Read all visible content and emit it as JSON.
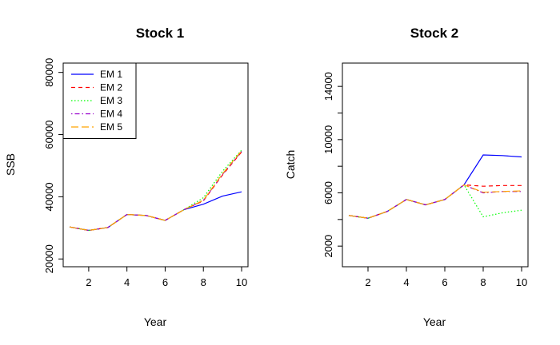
{
  "chart_data": [
    {
      "type": "line",
      "title": "Stock 1",
      "xlabel": "Year",
      "ylabel": "SSB",
      "xlim": [
        1,
        10
      ],
      "ylim": [
        17500,
        83000
      ],
      "xticks": [
        2,
        4,
        6,
        8,
        10
      ],
      "yticks": [
        20000,
        40000,
        60000,
        80000
      ],
      "legend": "top-left",
      "x": [
        1,
        2,
        3,
        4,
        5,
        6,
        7,
        8,
        9,
        10
      ],
      "series": [
        {
          "name": "EM 1",
          "color": "#0000ff",
          "dash": "solid",
          "values": [
            30300,
            29200,
            30100,
            34300,
            34000,
            32400,
            35900,
            37600,
            40200,
            41600
          ]
        },
        {
          "name": "EM 2",
          "color": "#ff0000",
          "dash": "dashed",
          "values": [
            30300,
            29200,
            30100,
            34300,
            34000,
            32400,
            35900,
            38700,
            47000,
            54400
          ]
        },
        {
          "name": "EM 3",
          "color": "#00ff00",
          "dash": "dotted",
          "values": [
            30300,
            29200,
            30100,
            34300,
            34000,
            32400,
            35900,
            39700,
            48200,
            55000
          ]
        },
        {
          "name": "EM 4",
          "color": "#9900cc",
          "dash": "dotdash",
          "values": [
            30300,
            29200,
            30100,
            34300,
            34000,
            32400,
            35900,
            38800,
            47200,
            54600
          ]
        },
        {
          "name": "EM 5",
          "color": "#ffa500",
          "dash": "longdash",
          "values": [
            30300,
            29200,
            30100,
            34300,
            34000,
            32400,
            35900,
            38900,
            47400,
            54800
          ]
        }
      ]
    },
    {
      "type": "line",
      "title": "Stock 2",
      "xlabel": "Year",
      "ylabel": "Catch",
      "xlim": [
        1,
        10
      ],
      "ylim": [
        450,
        15750
      ],
      "xticks": [
        2,
        4,
        6,
        8,
        10
      ],
      "yticks": [
        2000,
        6000,
        10000,
        14000
      ],
      "yticks_minor": [
        4000,
        8000,
        12000
      ],
      "legend": "none",
      "x": [
        1,
        2,
        3,
        4,
        5,
        6,
        7,
        8,
        9,
        10
      ],
      "series": [
        {
          "color": "#0000ff",
          "dash": "solid",
          "values": [
            4300,
            4100,
            4600,
            5500,
            5100,
            5500,
            6600,
            8850,
            8800,
            8700
          ]
        },
        {
          "color": "#ff0000",
          "dash": "dashed",
          "values": [
            4300,
            4100,
            4600,
            5500,
            5100,
            5500,
            6600,
            6500,
            6550,
            6550
          ]
        },
        {
          "color": "#00ff00",
          "dash": "dotted",
          "values": [
            4300,
            4100,
            4600,
            5500,
            5100,
            5500,
            6600,
            4200,
            4500,
            4700
          ]
        },
        {
          "color": "#9900cc",
          "dash": "dotdash",
          "values": [
            4300,
            4100,
            4600,
            5500,
            5100,
            5500,
            6600,
            6000,
            6100,
            6100
          ]
        },
        {
          "color": "#ffa500",
          "dash": "longdash",
          "values": [
            4300,
            4100,
            4600,
            5500,
            5100,
            5500,
            6600,
            6050,
            6100,
            6150
          ]
        }
      ]
    }
  ]
}
